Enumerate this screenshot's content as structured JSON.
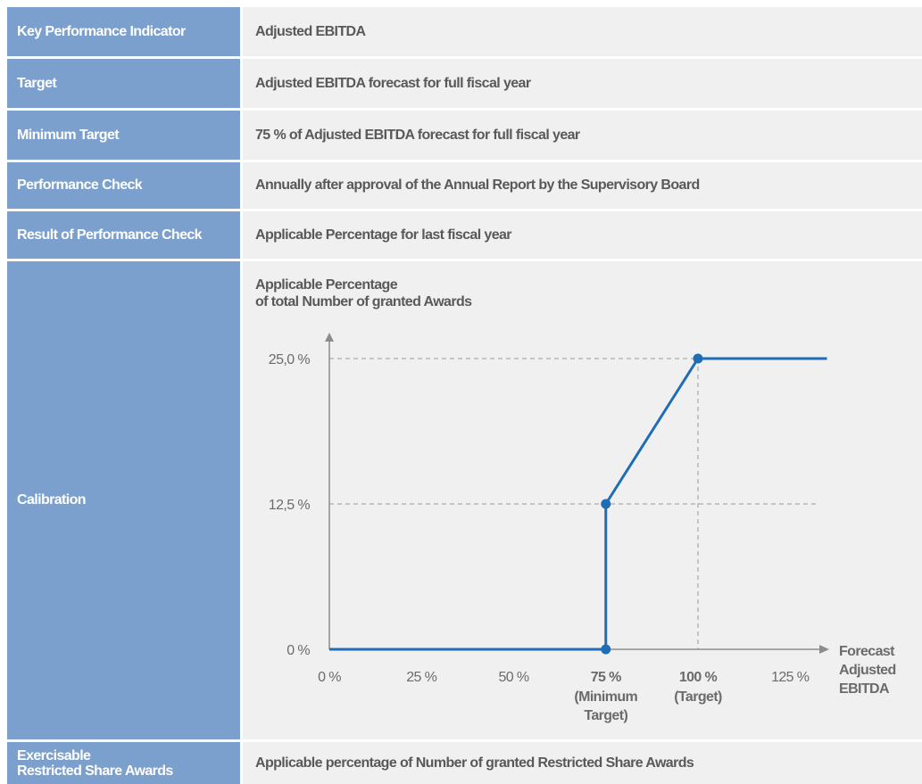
{
  "rows": [
    {
      "label": "Key Performance Indicator",
      "value": "Adjusted EBITDA"
    },
    {
      "label": "Target",
      "value": "Adjusted EBITDA forecast for full fiscal year"
    },
    {
      "label": "Minimum Target",
      "value": "75 % of Adjusted EBITDA forecast for full fiscal year"
    },
    {
      "label": "Performance Check",
      "value": "Annually after approval of the Annual Report by the Supervisory Board"
    },
    {
      "label": "Result of Performance Check",
      "value": "Applicable Percentage for last fiscal year"
    }
  ],
  "calibration": {
    "label": "Calibration"
  },
  "exercisable": {
    "label_line1": "Exercisable",
    "label_line2": "Restricted Share Awards",
    "value": "Applicable percentage of Number of granted Restricted Share Awards"
  },
  "chart_data": {
    "type": "line",
    "ylabel_line1": "Applicable Percentage",
    "ylabel_line2": "of total Number of granted Awards",
    "xlabel_lines": [
      "Forecast",
      "Adjusted",
      "EBITDA"
    ],
    "x_ticks": [
      "0 %",
      "25 %",
      "50 %",
      "75 %",
      "100 %",
      "125 %"
    ],
    "x_tick_values": [
      0,
      25,
      50,
      75,
      100,
      125
    ],
    "x_tick_sublabels": {
      "75": [
        "(Minimum",
        "Target)"
      ],
      "100": [
        "(Target)"
      ]
    },
    "y_ticks": [
      "0 %",
      "12,5 %",
      "25,0 %"
    ],
    "y_tick_values": [
      0,
      12.5,
      25
    ],
    "series": [
      {
        "x": [
          0,
          75,
          75,
          100,
          135
        ],
        "y": [
          0,
          0,
          12.5,
          25,
          25
        ]
      }
    ],
    "highlight_points": [
      {
        "x": 75,
        "y": 0
      },
      {
        "x": 75,
        "y": 12.5
      },
      {
        "x": 100,
        "y": 25
      }
    ],
    "reference_lines": [
      {
        "axis": "y",
        "value": 12.5
      },
      {
        "axis": "y",
        "value": 25
      },
      {
        "axis": "x",
        "value": 100
      }
    ],
    "xlim": [
      0,
      135
    ],
    "ylim": [
      0,
      25
    ],
    "grid": false,
    "line_color": "#1f6db5",
    "axis_color": "#8c8c8c"
  },
  "colors": {
    "label_bg": "#7ca0cd",
    "value_bg": "#f0f0f0",
    "label_text": "#ffffff",
    "value_text": "#595959"
  }
}
